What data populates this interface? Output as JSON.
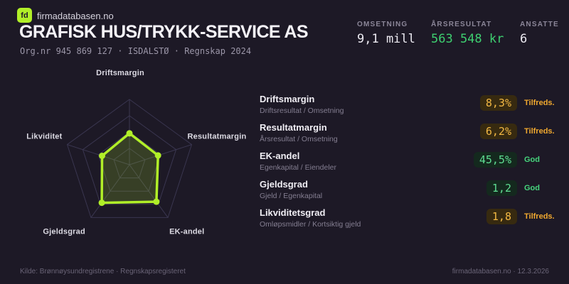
{
  "brand": {
    "logo": "fd",
    "site": "firmadatabasen.no"
  },
  "header": {
    "company": "GRAFISK HUS/TRYKK-SERVICE AS",
    "org_line": "Org.nr 945 869 127  ·  ISDALSTØ  ·  Regnskap 2024"
  },
  "kpis": [
    {
      "label": "OMSETNING",
      "value": "9,1 mill",
      "tone": "white"
    },
    {
      "label": "ÅRSRESULTAT",
      "value": "563 548 kr",
      "tone": "green"
    },
    {
      "label": "ANSATTE",
      "value": "6",
      "tone": "white"
    }
  ],
  "chart_data": {
    "type": "radar",
    "axes": [
      "Driftsmargin",
      "Resultatmargin",
      "EK-andel",
      "Gjeldsgrad",
      "Likviditet"
    ],
    "values": [
      0.48,
      0.46,
      0.7,
      0.72,
      0.44
    ],
    "scale_max": 1,
    "rings": [
      0.25,
      0.5,
      0.75,
      1
    ],
    "grid": true,
    "legend": "none",
    "title": ""
  },
  "metrics": [
    {
      "title": "Driftsmargin",
      "formula": "Driftsresultat / Omsetning",
      "value": "8,3%",
      "status": "Tilfreds.",
      "tone": "amber"
    },
    {
      "title": "Resultatmargin",
      "formula": "Årsresultat / Omsetning",
      "value": "6,2%",
      "status": "Tilfreds.",
      "tone": "amber"
    },
    {
      "title": "EK-andel",
      "formula": "Egenkapital / Eiendeler",
      "value": "45,5%",
      "status": "God",
      "tone": "green"
    },
    {
      "title": "Gjeldsgrad",
      "formula": "Gjeld / Egenkapital",
      "value": "1,2",
      "status": "God",
      "tone": "green"
    },
    {
      "title": "Likviditetsgrad",
      "formula": "Omløpsmidler / Kortsiktig gjeld",
      "value": "1,8",
      "status": "Tilfreds.",
      "tone": "amber"
    }
  ],
  "footer": {
    "source": "Kilde: Brønnøysundregistrene · Regnskapsregisteret",
    "credit": "firmadatabasen.no · 12.3.2026"
  },
  "colors": {
    "background": "#1d1926",
    "accent": "#b1ef28",
    "accent_fill": "rgba(177,239,40,0.18)",
    "grid": "#3a3650",
    "kpi_green": "#3ecf70",
    "badge_amber_bg": "#372a10",
    "badge_amber_text": "#f2b843",
    "badge_green_bg": "#14291e",
    "badge_green_text": "#5fdd92",
    "status_amber": "#f0a82f",
    "status_green": "#46d67d"
  }
}
